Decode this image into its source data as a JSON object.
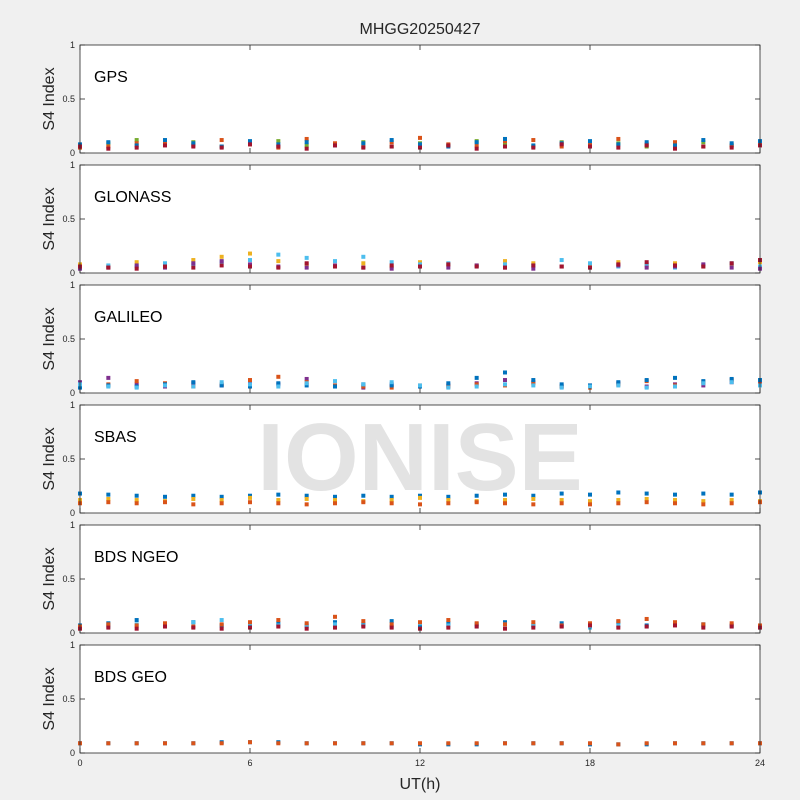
{
  "title": "MHGG20250427",
  "xlabel": "UT(h)",
  "watermark": "IONISE",
  "chart_data": [
    {
      "type": "scatter",
      "label": "GPS",
      "ylabel": "S4 Index",
      "xlim": [
        0,
        24
      ],
      "ylim": [
        0,
        1
      ],
      "xticks": [
        0,
        6,
        12,
        18,
        24
      ],
      "yticks": [
        0,
        0.5,
        1
      ],
      "x": [
        0,
        1,
        2,
        3,
        4,
        5,
        6,
        7,
        8,
        9,
        10,
        11,
        12,
        13,
        14,
        15,
        16,
        17,
        18,
        19,
        20,
        21,
        22,
        23,
        24
      ],
      "series": [
        {
          "color": "#77AC30",
          "values": [
            0.07,
            0.09,
            0.12,
            0.08,
            0.1,
            0.06,
            0.09,
            0.11,
            0.07,
            0.08,
            0.1,
            0.06,
            0.09,
            0.07,
            0.11,
            0.08,
            0.06,
            0.1,
            0.07,
            0.09,
            0.06,
            0.08,
            0.1,
            0.07,
            0.08
          ]
        },
        {
          "color": "#D95319",
          "values": [
            0.05,
            0.06,
            0.09,
            0.1,
            0.07,
            0.12,
            0.08,
            0.05,
            0.13,
            0.09,
            0.06,
            0.1,
            0.14,
            0.08,
            0.07,
            0.11,
            0.12,
            0.06,
            0.09,
            0.13,
            0.08,
            0.1,
            0.06,
            0.07,
            0.09
          ]
        },
        {
          "color": "#0072BD",
          "values": [
            0.08,
            0.1,
            0.07,
            0.12,
            0.09,
            0.06,
            0.11,
            0.08,
            0.1,
            0.07,
            0.09,
            0.12,
            0.08,
            0.06,
            0.1,
            0.13,
            0.07,
            0.09,
            0.11,
            0.08,
            0.1,
            0.07,
            0.12,
            0.09,
            0.11
          ]
        },
        {
          "color": "#A2142F",
          "values": [
            0.06,
            0.04,
            0.05,
            0.07,
            0.06,
            0.05,
            0.08,
            0.06,
            0.04,
            0.07,
            0.05,
            0.06,
            0.05,
            0.07,
            0.04,
            0.06,
            0.05,
            0.08,
            0.06,
            0.05,
            0.07,
            0.04,
            0.06,
            0.05,
            0.07
          ]
        }
      ]
    },
    {
      "type": "scatter",
      "label": "GLONASS",
      "ylabel": "S4 Index",
      "xlim": [
        0,
        24
      ],
      "ylim": [
        0,
        1
      ],
      "xticks": [
        0,
        6,
        12,
        18,
        24
      ],
      "yticks": [
        0,
        0.5,
        1
      ],
      "x": [
        0,
        1,
        2,
        3,
        4,
        5,
        6,
        7,
        8,
        9,
        10,
        11,
        12,
        13,
        14,
        15,
        16,
        17,
        18,
        19,
        20,
        21,
        22,
        23,
        24
      ],
      "series": [
        {
          "color": "#EDB120",
          "values": [
            0.08,
            0.06,
            0.1,
            0.07,
            0.12,
            0.15,
            0.18,
            0.11,
            0.08,
            0.07,
            0.09,
            0.06,
            0.1,
            0.08,
            0.07,
            0.11,
            0.09,
            0.06,
            0.08,
            0.1,
            0.07,
            0.09,
            0.06,
            0.08,
            0.1
          ]
        },
        {
          "color": "#4DBEEE",
          "values": [
            0.05,
            0.07,
            0.06,
            0.09,
            0.08,
            0.1,
            0.12,
            0.17,
            0.14,
            0.11,
            0.15,
            0.1,
            0.08,
            0.09,
            0.06,
            0.08,
            0.07,
            0.12,
            0.09,
            0.06,
            0.08,
            0.05,
            0.07,
            0.09,
            0.06
          ]
        },
        {
          "color": "#7E2F8E",
          "values": [
            0.04,
            0.05,
            0.07,
            0.05,
            0.09,
            0.11,
            0.08,
            0.06,
            0.05,
            0.07,
            0.05,
            0.04,
            0.06,
            0.05,
            0.07,
            0.05,
            0.04,
            0.06,
            0.05,
            0.07,
            0.05,
            0.06,
            0.08,
            0.05,
            0.04
          ]
        },
        {
          "color": "#A2142F",
          "values": [
            0.06,
            0.05,
            0.04,
            0.06,
            0.05,
            0.07,
            0.06,
            0.05,
            0.09,
            0.06,
            0.05,
            0.07,
            0.06,
            0.08,
            0.06,
            0.05,
            0.07,
            0.06,
            0.05,
            0.08,
            0.1,
            0.07,
            0.06,
            0.09,
            0.12
          ]
        }
      ]
    },
    {
      "type": "scatter",
      "label": "GALILEO",
      "ylabel": "S4 Index",
      "xlim": [
        0,
        24
      ],
      "ylim": [
        0,
        1
      ],
      "xticks": [
        0,
        6,
        12,
        18,
        24
      ],
      "yticks": [
        0,
        0.5,
        1
      ],
      "x": [
        0,
        1,
        2,
        3,
        4,
        5,
        6,
        7,
        8,
        9,
        10,
        11,
        12,
        13,
        14,
        15,
        16,
        17,
        18,
        19,
        20,
        21,
        22,
        23,
        24
      ],
      "series": [
        {
          "color": "#7E2F8E",
          "values": [
            0.1,
            0.14,
            0.08,
            0.06,
            0.09,
            0.07,
            0.1,
            0.08,
            0.13,
            0.07,
            0.05,
            0.08,
            0.06,
            0.07,
            0.09,
            0.12,
            0.1,
            0.06,
            0.07,
            0.09,
            0.06,
            0.08,
            0.07,
            0.1,
            0.09
          ]
        },
        {
          "color": "#D95319",
          "values": [
            0.06,
            0.08,
            0.11,
            0.09,
            0.06,
            0.08,
            0.12,
            0.15,
            0.1,
            0.07,
            0.06,
            0.05,
            0.07,
            0.06,
            0.08,
            0.07,
            0.09,
            0.06,
            0.05,
            0.08,
            0.11,
            0.07,
            0.1,
            0.12,
            0.08
          ]
        },
        {
          "color": "#0072BD",
          "values": [
            0.05,
            0.07,
            0.06,
            0.08,
            0.1,
            0.07,
            0.06,
            0.09,
            0.07,
            0.06,
            0.08,
            0.07,
            0.06,
            0.09,
            0.14,
            0.19,
            0.12,
            0.08,
            0.07,
            0.1,
            0.12,
            0.14,
            0.11,
            0.13,
            0.12
          ]
        },
        {
          "color": "#4DBEEE",
          "values": [
            0.08,
            0.06,
            0.05,
            0.07,
            0.06,
            0.1,
            0.08,
            0.06,
            0.09,
            0.11,
            0.08,
            0.1,
            0.07,
            0.05,
            0.06,
            0.08,
            0.07,
            0.05,
            0.06,
            0.07,
            0.05,
            0.06,
            0.09,
            0.1,
            0.07
          ]
        }
      ]
    },
    {
      "type": "scatter",
      "label": "SBAS",
      "ylabel": "S4 Index",
      "xlim": [
        0,
        24
      ],
      "ylim": [
        0,
        1
      ],
      "xticks": [
        0,
        6,
        12,
        18,
        24
      ],
      "yticks": [
        0,
        0.5,
        1
      ],
      "x": [
        0,
        1,
        2,
        3,
        4,
        5,
        6,
        7,
        8,
        9,
        10,
        11,
        12,
        13,
        14,
        15,
        16,
        17,
        18,
        19,
        20,
        21,
        22,
        23,
        24
      ],
      "series": [
        {
          "color": "#0072BD",
          "values": [
            0.18,
            0.17,
            0.16,
            0.15,
            0.16,
            0.15,
            0.16,
            0.17,
            0.16,
            0.15,
            0.16,
            0.15,
            0.16,
            0.15,
            0.16,
            0.17,
            0.16,
            0.18,
            0.17,
            0.19,
            0.18,
            0.17,
            0.18,
            0.17,
            0.19
          ]
        },
        {
          "color": "#EDB120",
          "values": [
            0.12,
            0.13,
            0.12,
            0.11,
            0.13,
            0.12,
            0.14,
            0.12,
            0.13,
            0.12,
            0.11,
            0.12,
            0.14,
            0.12,
            0.11,
            0.12,
            0.13,
            0.12,
            0.11,
            0.12,
            0.13,
            0.12,
            0.11,
            0.12,
            0.11
          ]
        },
        {
          "color": "#D95319",
          "values": [
            0.09,
            0.1,
            0.09,
            0.1,
            0.08,
            0.09,
            0.1,
            0.09,
            0.08,
            0.09,
            0.1,
            0.09,
            0.08,
            0.09,
            0.1,
            0.09,
            0.08,
            0.09,
            0.08,
            0.09,
            0.1,
            0.09,
            0.08,
            0.09,
            0.1
          ]
        }
      ]
    },
    {
      "type": "scatter",
      "label": "BDS NGEO",
      "ylabel": "S4 Index",
      "xlim": [
        0,
        24
      ],
      "ylim": [
        0,
        1
      ],
      "xticks": [
        0,
        6,
        12,
        18,
        24
      ],
      "yticks": [
        0,
        0.5,
        1
      ],
      "x": [
        0,
        1,
        2,
        3,
        4,
        5,
        6,
        7,
        8,
        9,
        10,
        11,
        12,
        13,
        14,
        15,
        16,
        17,
        18,
        19,
        20,
        21,
        22,
        23,
        24
      ],
      "series": [
        {
          "color": "#0072BD",
          "values": [
            0.07,
            0.09,
            0.12,
            0.08,
            0.1,
            0.07,
            0.08,
            0.09,
            0.07,
            0.1,
            0.08,
            0.11,
            0.07,
            0.09,
            0.08,
            0.1,
            0.07,
            0.09,
            0.08,
            0.1,
            0.07,
            0.09,
            0.08,
            0.07,
            0.06
          ]
        },
        {
          "color": "#4DBEEE",
          "values": [
            0.05,
            0.06,
            0.08,
            0.07,
            0.1,
            0.12,
            0.09,
            0.07,
            0.06,
            0.08,
            0.07,
            0.06,
            0.09,
            0.07,
            0.06,
            0.08,
            0.07,
            0.06,
            0.05,
            0.07,
            0.06,
            0.08,
            0.07,
            0.06,
            0.05
          ]
        },
        {
          "color": "#D95319",
          "values": [
            0.06,
            0.08,
            0.07,
            0.09,
            0.06,
            0.08,
            0.1,
            0.12,
            0.09,
            0.15,
            0.11,
            0.08,
            0.1,
            0.12,
            0.09,
            0.08,
            0.1,
            0.07,
            0.09,
            0.11,
            0.13,
            0.1,
            0.08,
            0.09,
            0.07
          ]
        },
        {
          "color": "#A2142F",
          "values": [
            0.04,
            0.05,
            0.04,
            0.06,
            0.05,
            0.04,
            0.05,
            0.06,
            0.04,
            0.05,
            0.06,
            0.05,
            0.04,
            0.05,
            0.06,
            0.04,
            0.05,
            0.06,
            0.07,
            0.05,
            0.06,
            0.07,
            0.05,
            0.06,
            0.05
          ]
        }
      ]
    },
    {
      "type": "scatter",
      "label": "BDS GEO",
      "ylabel": "S4 Index",
      "xlim": [
        0,
        24
      ],
      "ylim": [
        0,
        1
      ],
      "xticks": [
        0,
        6,
        12,
        18,
        24
      ],
      "yticks": [
        0,
        0.5,
        1
      ],
      "x": [
        0,
        1,
        2,
        3,
        4,
        5,
        6,
        7,
        8,
        9,
        10,
        11,
        12,
        13,
        14,
        15,
        16,
        17,
        18,
        19,
        20,
        21,
        22,
        23,
        24
      ],
      "series": [
        {
          "color": "#0072BD",
          "values": [
            0.09,
            0.09,
            0.09,
            0.09,
            0.09,
            0.1,
            0.1,
            0.1,
            0.09,
            0.09,
            0.09,
            0.09,
            0.08,
            0.08,
            0.08,
            0.09,
            0.09,
            0.09,
            0.08,
            0.08,
            0.08,
            0.09,
            0.09,
            0.09,
            0.09
          ]
        },
        {
          "color": "#D95319",
          "values": [
            0.09,
            0.09,
            0.09,
            0.09,
            0.09,
            0.09,
            0.1,
            0.09,
            0.09,
            0.09,
            0.09,
            0.09,
            0.09,
            0.09,
            0.09,
            0.09,
            0.09,
            0.09,
            0.09,
            0.08,
            0.09,
            0.09,
            0.09,
            0.09,
            0.09
          ]
        }
      ]
    }
  ]
}
